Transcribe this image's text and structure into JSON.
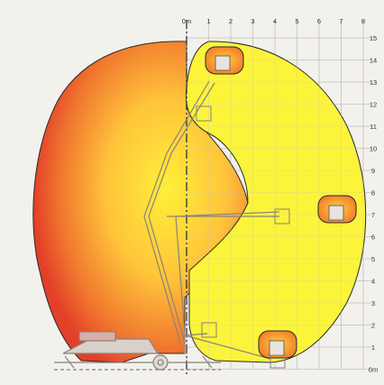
{
  "diagram": {
    "x_labels": [
      "0m",
      "1",
      "2",
      "3",
      "4",
      "5",
      "6",
      "7",
      "8"
    ],
    "y_labels": [
      "15",
      "14",
      "13",
      "12",
      "11",
      "10",
      "9",
      "8",
      "7",
      "6",
      "5",
      "4",
      "3",
      "2",
      "1",
      "0m"
    ],
    "colors": {
      "background": "#f2f1ec",
      "grid": "#c8c4bf",
      "envelope_yellow": "#fbf43a",
      "envelope_orange_light": "#ffe33a",
      "envelope_orange_dark": "#e8452a",
      "outline": "#2a2a2a",
      "machine": "#c9c2bd"
    }
  }
}
